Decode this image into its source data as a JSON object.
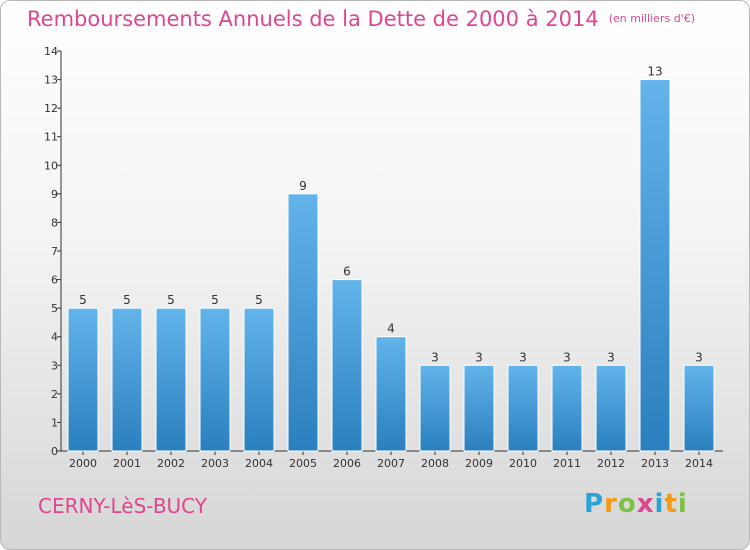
{
  "title": "Remboursements Annuels de la Dette de 2000 à 2014",
  "subtitle": "(en milliers d'€)",
  "commune": "CERNY-LèS-BUCY",
  "logo": {
    "letters": [
      "P",
      "r",
      "o",
      "x",
      "i",
      "t",
      "i"
    ],
    "colors": [
      "#2aa3d8",
      "#f39c12",
      "#7cc243",
      "#e0458f",
      "#2aa3d8",
      "#f39c12",
      "#7cc243"
    ]
  },
  "colors": {
    "bar_light": "#62b4ea",
    "bar_dark": "#2a7fbe",
    "title": "#e0458f"
  },
  "chart_data": {
    "type": "bar",
    "categories": [
      "2000",
      "2001",
      "2002",
      "2003",
      "2004",
      "2005",
      "2006",
      "2007",
      "2008",
      "2009",
      "2010",
      "2011",
      "2012",
      "2013",
      "2014"
    ],
    "values": [
      5,
      5,
      5,
      5,
      5,
      9,
      6,
      4,
      3,
      3,
      3,
      3,
      3,
      13,
      3
    ],
    "title": "Remboursements Annuels de la Dette de 2000 à 2014",
    "xlabel": "",
    "ylabel": "",
    "ylim": [
      0,
      14
    ],
    "yticks": [
      0,
      1,
      2,
      3,
      4,
      5,
      6,
      7,
      8,
      9,
      10,
      11,
      12,
      13,
      14
    ],
    "data_labels": true,
    "grid": false,
    "legend": "none"
  }
}
